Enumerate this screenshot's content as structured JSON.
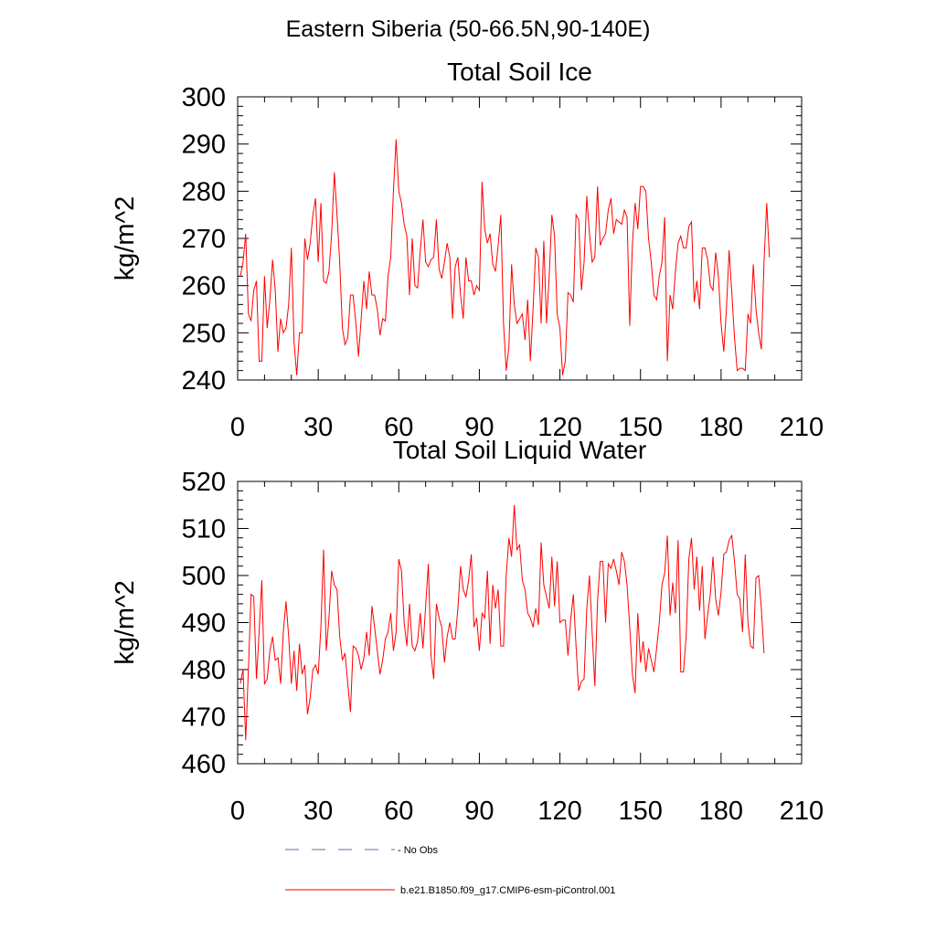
{
  "page_title": "Eastern Siberia (50-66.5N,90-140E)",
  "colors": {
    "model_line": "#ff0000",
    "obs_line": "#6a6aa8",
    "axis": "#000000"
  },
  "legend": {
    "entries": [
      {
        "label": "- No Obs",
        "style": "dashed",
        "color": "#6a6aa8"
      },
      {
        "label": "b.e21.B1850.f09_g17.CMIP6-esm-piControl.001",
        "style": "solid",
        "color": "#ff0000"
      }
    ]
  },
  "chart_data": [
    {
      "type": "line",
      "title": "Total Soil Ice",
      "xlabel": "",
      "ylabel": "kg/m^2",
      "xlim": [
        0,
        210
      ],
      "ylim": [
        240,
        300
      ],
      "xticks": [
        0,
        30,
        60,
        90,
        120,
        150,
        180,
        210
      ],
      "yticks": [
        240,
        250,
        260,
        270,
        280,
        290,
        300
      ],
      "series": [
        {
          "name": "b.e21.B1850.f09_g17.CMIP6-esm-piControl.001",
          "color": "#ff0000",
          "x_start": 1,
          "values": [
            262,
            265,
            271,
            254,
            252.5,
            259,
            261,
            244,
            244,
            262,
            251,
            257,
            265.5,
            259,
            246,
            253,
            250,
            251,
            256,
            268,
            248,
            241,
            250,
            250,
            270,
            265.5,
            269,
            275,
            278.5,
            265,
            277.5,
            261,
            260.5,
            263,
            271,
            284,
            275,
            265,
            251,
            247.5,
            249,
            258,
            258,
            252,
            245,
            253,
            261,
            255,
            263,
            258,
            258,
            255,
            249.5,
            253,
            252.5,
            262,
            266,
            280,
            291,
            280,
            277.5,
            273,
            270.5,
            258,
            270,
            260,
            259.5,
            267.5,
            274,
            265,
            264,
            265.5,
            266,
            274,
            263.5,
            261.5,
            265,
            269,
            266,
            253,
            264,
            266,
            258,
            253,
            266,
            261,
            261,
            258,
            260,
            259,
            282,
            272,
            269,
            271,
            264.5,
            263,
            268.5,
            275,
            252,
            242,
            247,
            264.5,
            256,
            252,
            253,
            254,
            248.5,
            257,
            244,
            255,
            268,
            266,
            252,
            269.5,
            252,
            262,
            275,
            270.5,
            254,
            251,
            241,
            244,
            258.5,
            258,
            256.5,
            275,
            274,
            259,
            265,
            279,
            271,
            265,
            266,
            281,
            268.5,
            270,
            271,
            276,
            278.5,
            271,
            274,
            273.5,
            273,
            276,
            274.5,
            251.5,
            269,
            277.5,
            272,
            281,
            281,
            280,
            270,
            265,
            258,
            257,
            262,
            265,
            274.5,
            244,
            258,
            255,
            263,
            269,
            270.5,
            268,
            268,
            272.5,
            273.5,
            256.5,
            261,
            255,
            268,
            268,
            265.5,
            260,
            259,
            267,
            262,
            252,
            246,
            255,
            267.5,
            258.5,
            249,
            242,
            242.5,
            242.5,
            242,
            254,
            252,
            264.5,
            255,
            250,
            246.5,
            265,
            277.5,
            266
          ]
        }
      ]
    },
    {
      "type": "line",
      "title": "Total Soil Liquid Water",
      "xlabel": "",
      "ylabel": "kg/m^2",
      "xlim": [
        0,
        210
      ],
      "ylim": [
        460,
        520
      ],
      "xticks": [
        0,
        30,
        60,
        90,
        120,
        150,
        180,
        210
      ],
      "yticks": [
        460,
        470,
        480,
        490,
        500,
        510,
        520
      ],
      "series": [
        {
          "name": "b.e21.B1850.f09_g17.CMIP6-esm-piControl.001",
          "color": "#ff0000",
          "x_start": 1,
          "values": [
            477,
            480,
            465,
            480,
            496,
            495.5,
            478,
            488,
            499,
            477,
            478,
            484,
            487,
            482,
            482.5,
            477,
            488,
            494.5,
            487,
            477,
            484,
            475.5,
            485.5,
            479,
            481,
            470.5,
            474,
            480,
            481,
            479,
            489,
            505.5,
            484,
            491,
            501,
            498,
            497,
            487,
            482,
            483.5,
            477,
            471,
            485,
            484.5,
            483,
            480,
            482.5,
            488,
            483,
            493.5,
            489,
            484,
            479,
            482,
            486.5,
            488,
            492,
            484,
            488,
            503.5,
            501,
            490,
            485,
            494,
            485,
            484,
            486,
            492,
            484.5,
            493.5,
            502.5,
            483,
            478,
            494,
            491,
            489,
            481.5,
            487,
            490,
            486.5,
            486.5,
            493,
            502,
            497,
            495.5,
            499,
            504.5,
            489,
            491,
            484,
            492,
            491,
            501,
            485.5,
            498,
            493,
            497,
            485,
            485,
            500,
            508,
            504,
            515,
            505.5,
            506.5,
            499,
            497,
            492,
            491,
            489,
            493,
            489.5,
            507,
            498,
            495.5,
            493,
            504,
            493.5,
            503,
            490,
            490.5,
            490.5,
            483,
            490.5,
            496,
            485,
            475.5,
            477.5,
            478,
            493,
            500,
            488,
            476.5,
            494.5,
            503,
            503,
            490,
            502.5,
            501.5,
            503.5,
            501,
            498,
            505,
            503,
            498,
            489,
            479,
            475,
            492,
            481.5,
            486,
            479.5,
            484.5,
            482,
            479.5,
            484.5,
            490,
            498,
            500.5,
            508.5,
            491.5,
            498.5,
            492,
            507.5,
            479.5,
            479.5,
            487,
            503.5,
            508,
            497,
            504,
            492.5,
            502,
            486.5,
            491.5,
            496,
            504,
            495,
            491.5,
            496.5,
            504.5,
            505,
            507.5,
            508.5,
            503,
            496,
            495,
            488,
            504.5,
            490,
            485,
            484.5,
            499.5,
            500,
            493,
            483.5
          ]
        }
      ]
    }
  ]
}
